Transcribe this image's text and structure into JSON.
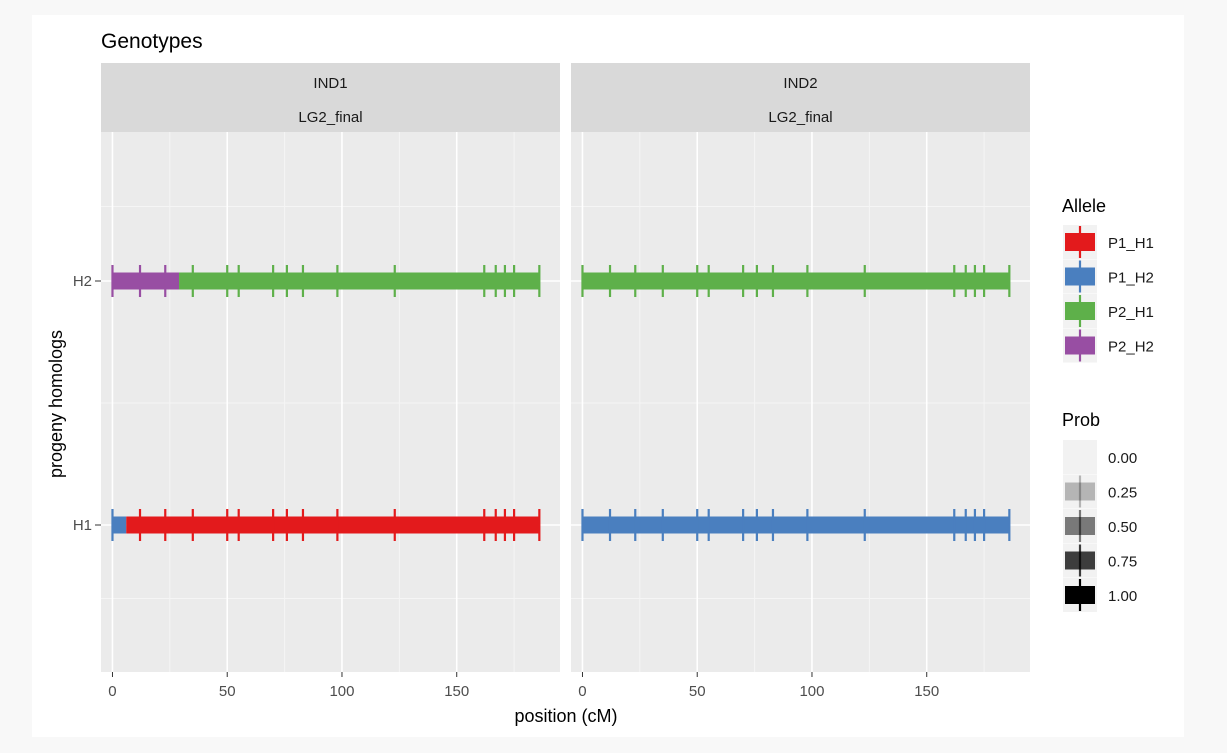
{
  "chart_data": {
    "type": "genotype-segments",
    "title": "Genotypes",
    "xlabel": "position (cM)",
    "ylabel": "progeny homologs",
    "xlim": [
      -5,
      195
    ],
    "x_ticks": [
      0,
      50,
      100,
      150
    ],
    "y_categories": [
      "H1",
      "H2"
    ],
    "grid": true,
    "marker_positions": [
      0,
      12,
      23,
      35,
      50,
      55,
      70,
      76,
      83,
      98,
      123,
      162,
      167,
      171,
      175,
      186
    ],
    "allele_colors": {
      "P1_H1": "#e31a1c",
      "P1_H2": "#4a7fbf",
      "P2_H1": "#5eb04a",
      "P2_H2": "#984ea3"
    },
    "panels": [
      {
        "strip_top": "IND1",
        "strip_bottom": "LG2_final",
        "segments": [
          {
            "homolog": "H1",
            "allele": "P1_H2",
            "start": 0,
            "end": 6
          },
          {
            "homolog": "H1",
            "allele": "P1_H1",
            "start": 6,
            "end": 186
          },
          {
            "homolog": "H2",
            "allele": "P2_H2",
            "start": 0,
            "end": 29
          },
          {
            "homolog": "H2",
            "allele": "P2_H1",
            "start": 29,
            "end": 186
          }
        ],
        "marker_colors": {
          "H1": [
            "P1_H2",
            "P1_H1",
            "P1_H1",
            "P1_H1",
            "P1_H1",
            "P1_H1",
            "P1_H1",
            "P1_H1",
            "P1_H1",
            "P1_H1",
            "P1_H1",
            "P1_H1",
            "P1_H1",
            "P1_H1",
            "P1_H1",
            "P1_H1"
          ],
          "H2": [
            "P2_H2",
            "P2_H2",
            "P2_H2",
            "P2_H1",
            "P2_H1",
            "P2_H1",
            "P2_H1",
            "P2_H1",
            "P2_H1",
            "P2_H1",
            "P2_H1",
            "P2_H1",
            "P2_H1",
            "P2_H1",
            "P2_H1",
            "P2_H1"
          ]
        }
      },
      {
        "strip_top": "IND2",
        "strip_bottom": "LG2_final",
        "segments": [
          {
            "homolog": "H1",
            "allele": "P1_H2",
            "start": 0,
            "end": 186
          },
          {
            "homolog": "H2",
            "allele": "P2_H1",
            "start": 0,
            "end": 186
          }
        ],
        "marker_colors": {
          "H1": [
            "P1_H2",
            "P1_H2",
            "P1_H2",
            "P1_H2",
            "P1_H2",
            "P1_H2",
            "P1_H2",
            "P1_H2",
            "P1_H2",
            "P1_H2",
            "P1_H2",
            "P1_H2",
            "P1_H2",
            "P1_H2",
            "P1_H2",
            "P1_H2"
          ],
          "H2": [
            "P2_H1",
            "P2_H1",
            "P2_H1",
            "P2_H1",
            "P2_H1",
            "P2_H1",
            "P2_H1",
            "P2_H1",
            "P2_H1",
            "P2_H1",
            "P2_H1",
            "P2_H1",
            "P2_H1",
            "P2_H1",
            "P2_H1",
            "P2_H1"
          ]
        }
      }
    ],
    "legend_allele": {
      "title": "Allele",
      "items": [
        "P1_H1",
        "P1_H2",
        "P2_H1",
        "P2_H2"
      ]
    },
    "legend_prob": {
      "title": "Prob",
      "items": [
        {
          "label": "0.00",
          "alpha": 0.0
        },
        {
          "label": "0.25",
          "alpha": 0.25
        },
        {
          "label": "0.50",
          "alpha": 0.5
        },
        {
          "label": "0.75",
          "alpha": 0.75
        },
        {
          "label": "1.00",
          "alpha": 1.0
        }
      ]
    },
    "legend_placement": "right"
  }
}
